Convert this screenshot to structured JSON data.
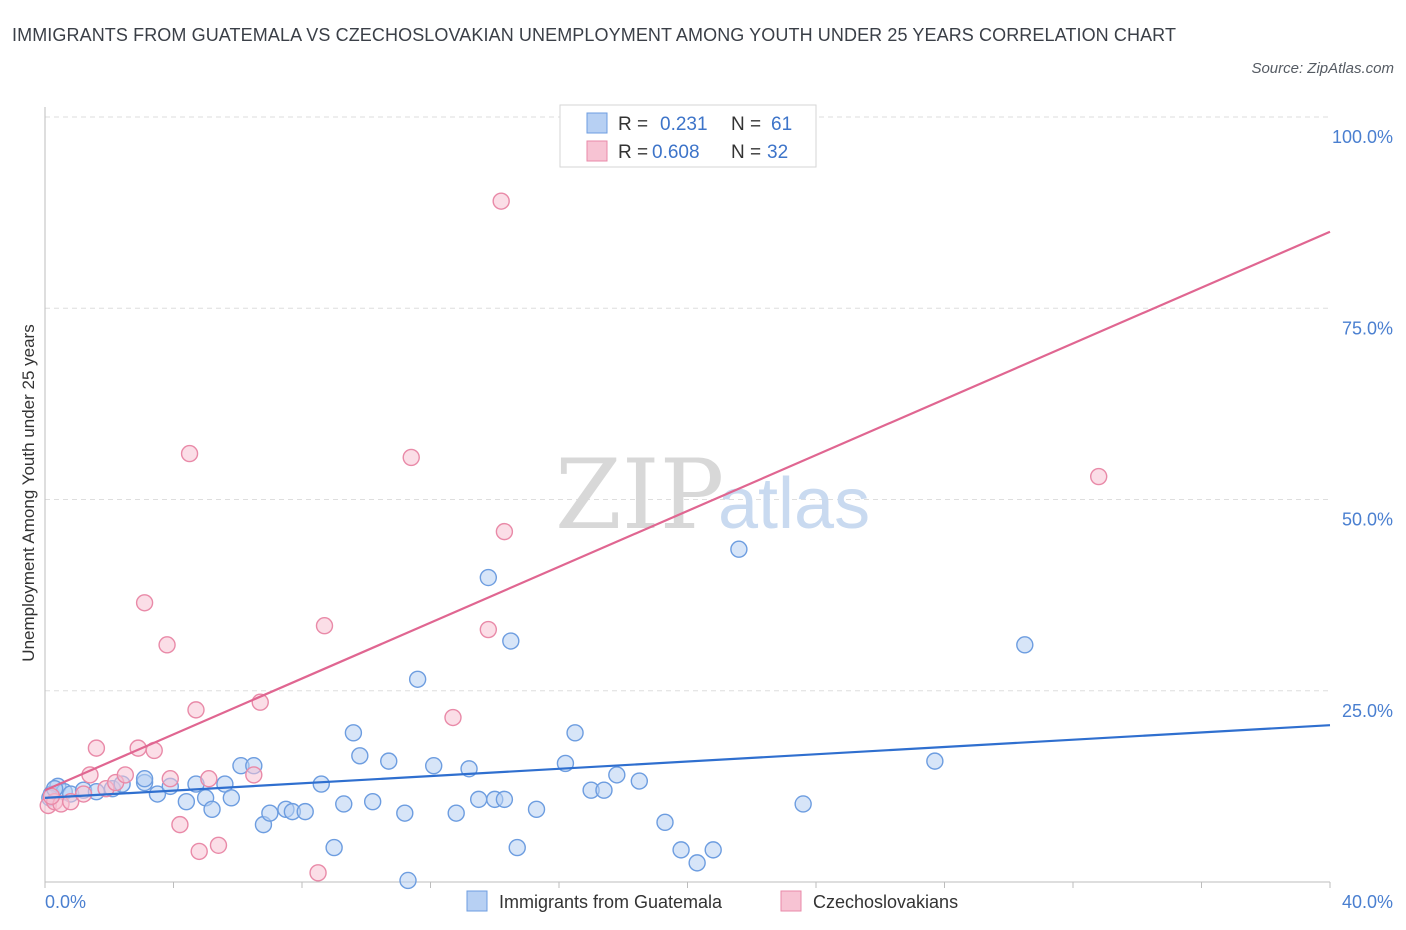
{
  "title": "IMMIGRANTS FROM GUATEMALA VS CZECHOSLOVAKIAN UNEMPLOYMENT AMONG YOUTH UNDER 25 YEARS CORRELATION CHART",
  "source": "Source: ZipAtlas.com",
  "watermark": {
    "zip": "ZIP",
    "atlas": "atlas"
  },
  "chart_data": {
    "type": "scatter",
    "title": "IMMIGRANTS FROM GUATEMALA VS CZECHOSLOVAKIAN UNEMPLOYMENT AMONG YOUTH UNDER 25 YEARS CORRELATION CHART",
    "xlabel": "",
    "ylabel": "Unemployment Among Youth under 25 years",
    "xlim": [
      0,
      40
    ],
    "ylim": [
      0,
      100
    ],
    "x_tick_labels": [
      "0.0%",
      "40.0%"
    ],
    "y_ticks": [
      25,
      50,
      75,
      100
    ],
    "y_tick_labels": [
      "25.0%",
      "50.0%",
      "75.0%",
      "100.0%"
    ],
    "grid": true,
    "legend_stats": [
      {
        "r_label": "R =",
        "r_value": "0.231",
        "n_label": "N =",
        "n_value": "61"
      },
      {
        "r_label": "R =",
        "r_value": "0.608",
        "n_label": "N =",
        "n_value": "32"
      }
    ],
    "series": [
      {
        "name": "Immigrants from Guatemala",
        "color": "#6d9de0",
        "fill": "#b7d0f3",
        "trend": {
          "x": [
            0,
            40
          ],
          "y": [
            11.0,
            20.5
          ],
          "color": "#2f6fcf"
        },
        "points": [
          [
            0.2,
            11.5
          ],
          [
            0.4,
            12.5
          ],
          [
            0.6,
            11.8
          ],
          [
            0.8,
            11.5
          ],
          [
            1.2,
            12.0
          ],
          [
            1.6,
            11.8
          ],
          [
            2.1,
            12.2
          ],
          [
            2.4,
            12.8
          ],
          [
            3.1,
            13.0
          ],
          [
            3.1,
            13.5
          ],
          [
            3.5,
            11.5
          ],
          [
            3.9,
            12.5
          ],
          [
            4.4,
            10.5
          ],
          [
            4.7,
            12.8
          ],
          [
            5.0,
            11.0
          ],
          [
            5.2,
            9.5
          ],
          [
            5.6,
            12.8
          ],
          [
            5.8,
            11.0
          ],
          [
            6.1,
            15.2
          ],
          [
            6.5,
            15.2
          ],
          [
            6.8,
            7.5
          ],
          [
            7.0,
            9.0
          ],
          [
            7.5,
            9.5
          ],
          [
            7.7,
            9.2
          ],
          [
            8.1,
            9.2
          ],
          [
            8.6,
            12.8
          ],
          [
            9.0,
            4.5
          ],
          [
            9.3,
            10.2
          ],
          [
            9.6,
            19.5
          ],
          [
            9.8,
            16.5
          ],
          [
            10.2,
            10.5
          ],
          [
            10.7,
            15.8
          ],
          [
            11.2,
            9.0
          ],
          [
            11.3,
            0.2
          ],
          [
            11.6,
            26.5
          ],
          [
            12.1,
            15.2
          ],
          [
            12.8,
            9.0
          ],
          [
            13.2,
            14.8
          ],
          [
            13.5,
            10.8
          ],
          [
            13.8,
            39.8
          ],
          [
            14.0,
            10.8
          ],
          [
            14.3,
            10.8
          ],
          [
            14.5,
            31.5
          ],
          [
            14.7,
            4.5
          ],
          [
            15.3,
            9.5
          ],
          [
            16.2,
            15.5
          ],
          [
            16.5,
            19.5
          ],
          [
            17.0,
            12.0
          ],
          [
            17.4,
            12.0
          ],
          [
            17.8,
            14.0
          ],
          [
            18.5,
            13.2
          ],
          [
            19.3,
            7.8
          ],
          [
            19.8,
            4.2
          ],
          [
            20.3,
            2.5
          ],
          [
            20.8,
            4.2
          ],
          [
            21.6,
            43.5
          ],
          [
            23.6,
            10.2
          ],
          [
            27.7,
            15.8
          ],
          [
            30.5,
            31.0
          ],
          [
            0.15,
            11.0
          ],
          [
            0.3,
            12.2
          ]
        ]
      },
      {
        "name": "Czechoslovakians",
        "color": "#e98aa8",
        "fill": "#f7c3d3",
        "trend": {
          "x": [
            0,
            40
          ],
          "y": [
            12.0,
            85.0
          ],
          "color": "#e06691"
        },
        "points": [
          [
            0.1,
            10.0
          ],
          [
            0.3,
            10.5
          ],
          [
            0.5,
            10.2
          ],
          [
            0.8,
            10.5
          ],
          [
            1.2,
            11.5
          ],
          [
            1.4,
            14.0
          ],
          [
            1.6,
            17.5
          ],
          [
            1.9,
            12.2
          ],
          [
            2.2,
            13.0
          ],
          [
            2.5,
            14.0
          ],
          [
            2.9,
            17.5
          ],
          [
            3.1,
            36.5
          ],
          [
            3.4,
            17.2
          ],
          [
            3.8,
            31.0
          ],
          [
            3.9,
            13.5
          ],
          [
            4.2,
            7.5
          ],
          [
            4.5,
            56.0
          ],
          [
            4.7,
            22.5
          ],
          [
            4.8,
            4.0
          ],
          [
            5.1,
            13.5
          ],
          [
            5.4,
            4.8
          ],
          [
            6.5,
            14.0
          ],
          [
            6.7,
            23.5
          ],
          [
            8.5,
            1.2
          ],
          [
            8.7,
            33.5
          ],
          [
            11.4,
            55.5
          ],
          [
            12.7,
            21.5
          ],
          [
            13.8,
            33.0
          ],
          [
            14.3,
            45.8
          ],
          [
            14.2,
            89.0
          ],
          [
            32.8,
            53.0
          ],
          [
            0.2,
            11.2
          ]
        ]
      }
    ]
  }
}
